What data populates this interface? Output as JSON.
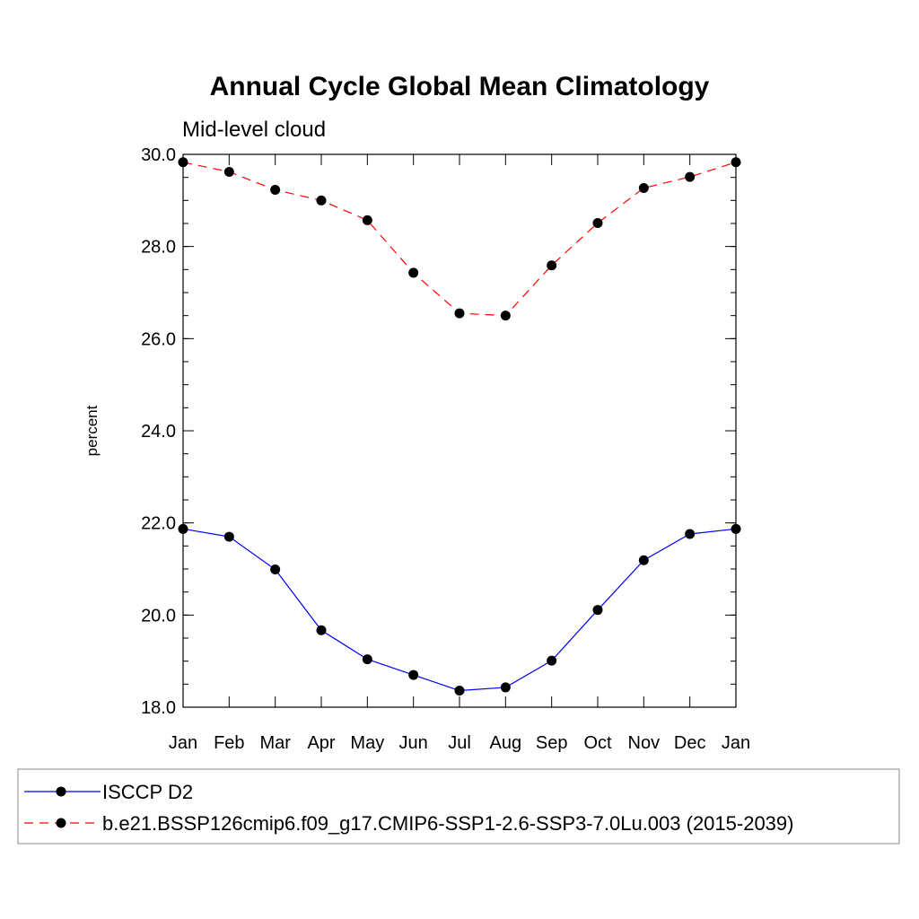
{
  "chart_data": {
    "type": "line",
    "title": "Annual Cycle Global Mean Climatology",
    "subtitle": "Mid-level cloud",
    "xlabel": "",
    "ylabel": "percent",
    "categories": [
      "Jan",
      "Feb",
      "Mar",
      "Apr",
      "May",
      "Jun",
      "Jul",
      "Aug",
      "Sep",
      "Oct",
      "Nov",
      "Dec",
      "Jan"
    ],
    "ylim": [
      18.0,
      30.0
    ],
    "yticks": [
      "18.0",
      "20.0",
      "22.0",
      "24.0",
      "26.0",
      "28.0",
      "30.0"
    ],
    "grid": false,
    "legend_position": "bottom",
    "series": [
      {
        "name": "ISCCP D2",
        "color": "#0000ff",
        "line_style": "solid",
        "marker": "filled-circle",
        "values": [
          21.87,
          21.7,
          20.99,
          19.67,
          19.04,
          18.7,
          18.36,
          18.43,
          19.01,
          20.11,
          21.19,
          21.76,
          21.87
        ]
      },
      {
        "name": "b.e21.BSSP126cmip6.f09_g17.CMIP6-SSP1-2.6-SSP3-7.0Lu.003 (2015-2039)",
        "color": "#ff0000",
        "line_style": "dashed",
        "marker": "filled-circle",
        "values": [
          29.83,
          29.62,
          29.23,
          29.0,
          28.57,
          27.43,
          26.55,
          26.5,
          27.59,
          28.51,
          29.27,
          29.51,
          29.83
        ]
      }
    ]
  }
}
